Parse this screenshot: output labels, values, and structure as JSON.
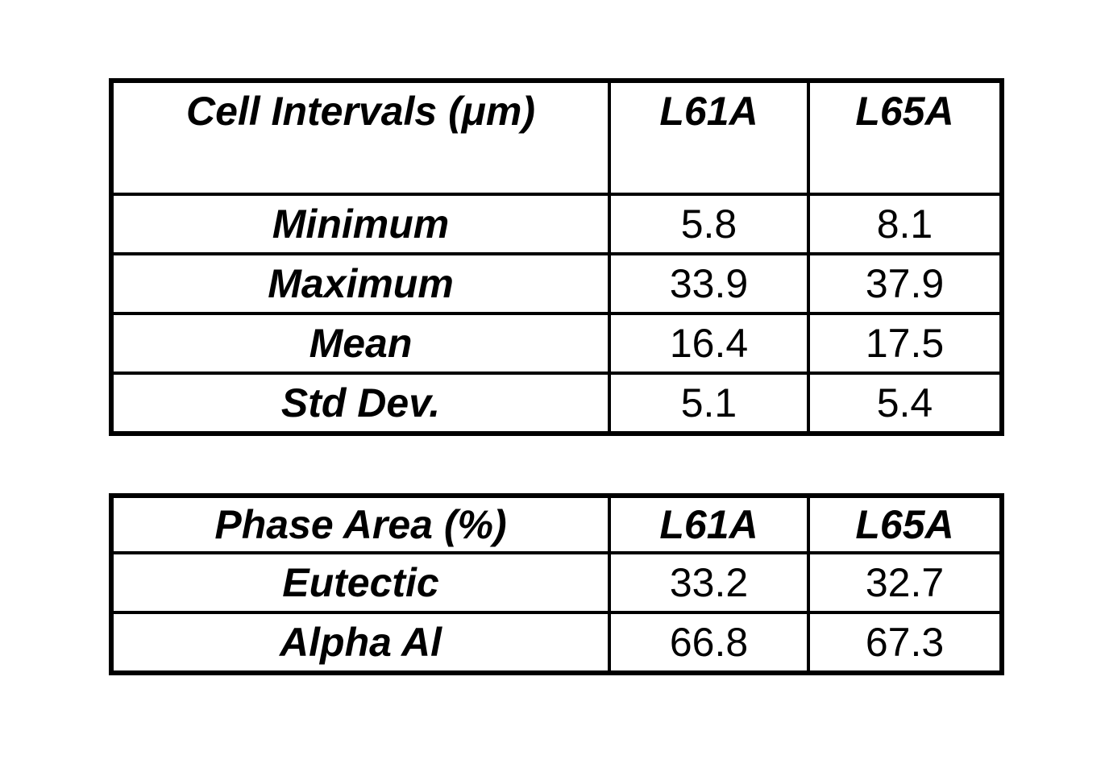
{
  "page": {
    "background_color": "#ffffff",
    "text_color": "#000000",
    "border_color": "#000000"
  },
  "tables": [
    {
      "name": "cell-intervals-table",
      "header": {
        "label": "Cell Intervals (μm)",
        "columns": [
          "L61A",
          "L65A"
        ]
      },
      "rows": [
        {
          "label": "Minimum",
          "values": [
            "5.8",
            "8.1"
          ]
        },
        {
          "label": "Maximum",
          "values": [
            "33.9",
            "37.9"
          ]
        },
        {
          "label": "Mean",
          "values": [
            "16.4",
            "17.5"
          ]
        },
        {
          "label": "Std Dev.",
          "values": [
            "5.1",
            "5.4"
          ]
        }
      ]
    },
    {
      "name": "phase-area-table",
      "header": {
        "label": "Phase Area (%)",
        "columns": [
          "L61A",
          "L65A"
        ]
      },
      "rows": [
        {
          "label": "Eutectic",
          "values": [
            "33.2",
            "32.7"
          ]
        },
        {
          "label": "Alpha Al",
          "values": [
            "66.8",
            "67.3"
          ]
        }
      ]
    }
  ],
  "chart_data": [
    {
      "type": "table",
      "title": "Cell Intervals (μm)",
      "columns": [
        "Cell Intervals (μm)",
        "L61A",
        "L65A"
      ],
      "rows": [
        [
          "Minimum",
          5.8,
          8.1
        ],
        [
          "Maximum",
          33.9,
          37.9
        ],
        [
          "Mean",
          16.4,
          17.5
        ],
        [
          "Std Dev.",
          5.1,
          5.4
        ]
      ]
    },
    {
      "type": "table",
      "title": "Phase Area (%)",
      "columns": [
        "Phase Area (%)",
        "L61A",
        "L65A"
      ],
      "rows": [
        [
          "Eutectic",
          33.2,
          32.7
        ],
        [
          "Alpha Al",
          66.8,
          67.3
        ]
      ]
    }
  ]
}
